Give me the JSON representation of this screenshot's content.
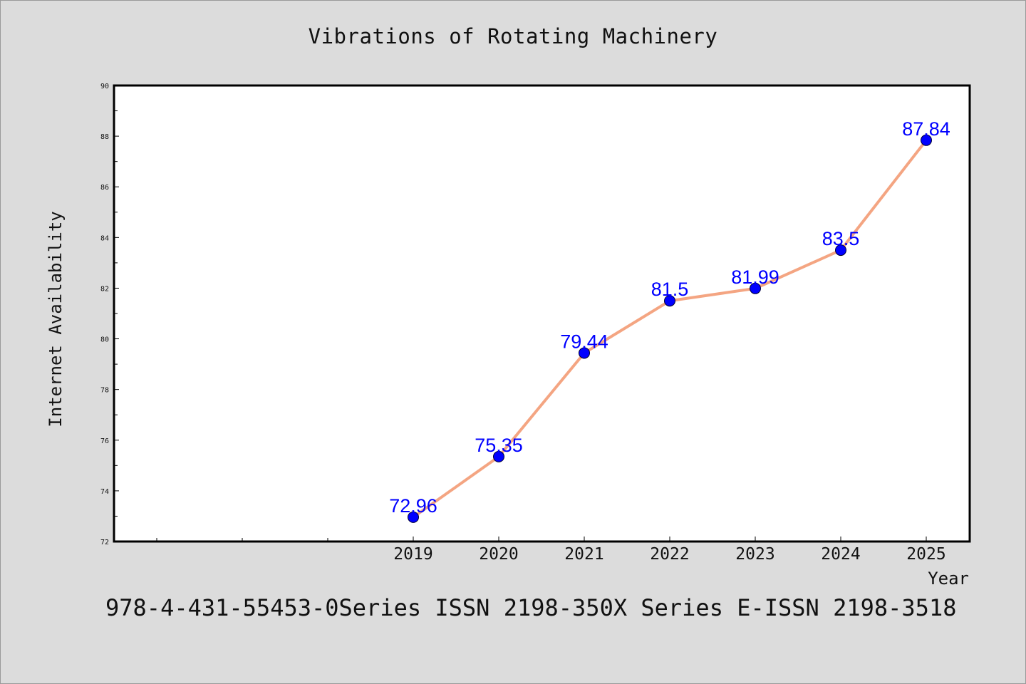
{
  "chart_data": {
    "type": "line",
    "title": "Vibrations of Rotating Machinery",
    "xlabel": "Year",
    "ylabel": "Internet Availability",
    "x": [
      "2019",
      "2020",
      "2021",
      "2022",
      "2023",
      "2024",
      "2025"
    ],
    "series": [
      {
        "values": [
          72.96,
          75.35,
          79.44,
          81.5,
          81.99,
          83.5,
          87.84
        ],
        "labels": [
          "72.96",
          "75.35",
          "79.44",
          "81.5",
          "81.99",
          "83.5",
          "87.84"
        ]
      }
    ],
    "ylim": [
      72,
      90
    ],
    "yticks": [
      "72",
      "74",
      "76",
      "78",
      "80",
      "82",
      "84",
      "86",
      "88",
      "90"
    ],
    "grid": false,
    "line_color": "#f4a582",
    "marker_color": "#0000ff",
    "label_color": "#0000ff"
  },
  "footer": "978-4-431-55453-0Series ISSN 2198-350X Series E-ISSN 2198-3518"
}
